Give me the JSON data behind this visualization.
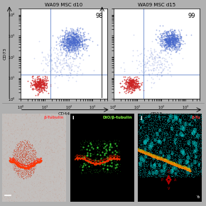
{
  "top_panels": [
    {
      "title": "WA09 MSC d10",
      "xlabel": "CD44",
      "ylabel": "CD73",
      "percentage": "98",
      "xline": 18,
      "yline": 14
    },
    {
      "title": "WA09 MSC d15",
      "xlabel": "CD13",
      "ylabel": "CD73",
      "percentage": "99",
      "xline": 18,
      "yline": 14
    }
  ],
  "bottom_panels": [
    {
      "label": "β-Tubulin",
      "label_color": "#ff4444",
      "bg_color": "#000000",
      "panel_letter": ""
    },
    {
      "label": "DiO/β-tubulin",
      "label_color": "#88ff44",
      "bg_color": "#000000",
      "panel_letter": "i"
    },
    {
      "label": "β-Tu",
      "label_color": "#ff4444",
      "bg_color": "#000000",
      "panel_letter": "j"
    }
  ],
  "fig_bg": "#b0b0b0",
  "plot_bg": "#ffffff",
  "scatter_line_color": "#6688cc",
  "blue_dot_color": "#4466cc",
  "red_dot_color": "#cc2222",
  "scatter_dot_alpha": 0.5,
  "scatter_dot_size": 1.5
}
